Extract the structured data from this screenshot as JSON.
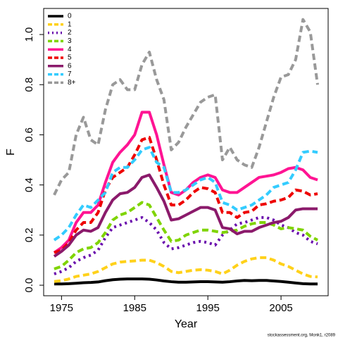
{
  "chart_data": {
    "type": "line",
    "xlabel": "Year",
    "ylabel": "F",
    "caption": "stockassessment.org, Monk1, r2089",
    "x": [
      1974,
      1975,
      1976,
      1977,
      1978,
      1979,
      1980,
      1981,
      1982,
      1983,
      1984,
      1985,
      1986,
      1987,
      1988,
      1989,
      1990,
      1991,
      1992,
      1993,
      1994,
      1995,
      1996,
      1997,
      1998,
      1999,
      2000,
      2001,
      2002,
      2003,
      2004,
      2005,
      2006,
      2007,
      2008,
      2009,
      2010
    ],
    "xlim": [
      1972.56,
      2011.44
    ],
    "xticks": [
      1975,
      1985,
      1995,
      2005
    ],
    "ylim": [
      -0.042,
      1.104
    ],
    "yticks": [
      {
        "value": 0,
        "label": "0.0"
      },
      0.2,
      0.4,
      0.6,
      0.8,
      {
        "value": 1,
        "label": "1.0"
      }
    ],
    "legend": "top-left",
    "series": [
      {
        "name": "0",
        "color": "#000000",
        "linestyle": "solid",
        "values": [
          0.005,
          0.005,
          0.006,
          0.008,
          0.01,
          0.011,
          0.013,
          0.018,
          0.022,
          0.024,
          0.025,
          0.025,
          0.025,
          0.024,
          0.021,
          0.017,
          0.014,
          0.012,
          0.012,
          0.013,
          0.014,
          0.014,
          0.013,
          0.012,
          0.014,
          0.017,
          0.019,
          0.018,
          0.019,
          0.019,
          0.017,
          0.015,
          0.012,
          0.009,
          0.006,
          0.005,
          0.005
        ]
      },
      {
        "name": "1",
        "color": "#FFD11A",
        "linestyle": "dashed",
        "values": [
          0.015,
          0.018,
          0.025,
          0.035,
          0.04,
          0.045,
          0.055,
          0.07,
          0.085,
          0.092,
          0.095,
          0.097,
          0.1,
          0.1,
          0.09,
          0.075,
          0.055,
          0.05,
          0.055,
          0.06,
          0.062,
          0.06,
          0.055,
          0.045,
          0.06,
          0.08,
          0.095,
          0.105,
          0.11,
          0.11,
          0.1,
          0.085,
          0.075,
          0.06,
          0.045,
          0.035,
          0.033
        ]
      },
      {
        "name": "2",
        "color": "#6A0DAD",
        "linestyle": "dotted",
        "values": [
          0.045,
          0.055,
          0.07,
          0.095,
          0.11,
          0.12,
          0.14,
          0.19,
          0.23,
          0.24,
          0.25,
          0.26,
          0.27,
          0.25,
          0.22,
          0.17,
          0.145,
          0.15,
          0.16,
          0.17,
          0.175,
          0.17,
          0.16,
          0.2,
          0.22,
          0.245,
          0.25,
          0.26,
          0.27,
          0.27,
          0.26,
          0.24,
          0.23,
          0.21,
          0.2,
          0.175,
          0.165
        ]
      },
      {
        "name": "3",
        "color": "#7FD400",
        "linestyle": "dashed",
        "values": [
          0.065,
          0.075,
          0.1,
          0.13,
          0.145,
          0.15,
          0.17,
          0.21,
          0.26,
          0.28,
          0.29,
          0.31,
          0.33,
          0.32,
          0.27,
          0.22,
          0.175,
          0.18,
          0.2,
          0.21,
          0.22,
          0.22,
          0.215,
          0.21,
          0.215,
          0.22,
          0.235,
          0.245,
          0.25,
          0.25,
          0.24,
          0.225,
          0.23,
          0.225,
          0.22,
          0.195,
          0.18
        ]
      },
      {
        "name": "4",
        "color": "#FF1493",
        "linestyle": "solid",
        "values": [
          0.13,
          0.15,
          0.18,
          0.25,
          0.29,
          0.29,
          0.32,
          0.41,
          0.49,
          0.53,
          0.56,
          0.6,
          0.69,
          0.69,
          0.6,
          0.48,
          0.37,
          0.36,
          0.38,
          0.41,
          0.43,
          0.44,
          0.43,
          0.38,
          0.37,
          0.37,
          0.39,
          0.41,
          0.43,
          0.435,
          0.44,
          0.45,
          0.465,
          0.47,
          0.46,
          0.43,
          0.42
        ]
      },
      {
        "name": "5",
        "color": "#EE0000",
        "linestyle": "dashed",
        "values": [
          0.13,
          0.14,
          0.17,
          0.22,
          0.25,
          0.25,
          0.29,
          0.38,
          0.43,
          0.45,
          0.47,
          0.52,
          0.58,
          0.59,
          0.5,
          0.4,
          0.32,
          0.32,
          0.34,
          0.37,
          0.39,
          0.385,
          0.37,
          0.29,
          0.29,
          0.27,
          0.29,
          0.295,
          0.32,
          0.325,
          0.335,
          0.34,
          0.35,
          0.38,
          0.375,
          0.36,
          0.365
        ]
      },
      {
        "name": "6",
        "color": "#8B1A6B",
        "linestyle": "solid",
        "values": [
          0.115,
          0.135,
          0.16,
          0.2,
          0.22,
          0.215,
          0.23,
          0.29,
          0.34,
          0.365,
          0.37,
          0.39,
          0.43,
          0.44,
          0.39,
          0.335,
          0.26,
          0.265,
          0.28,
          0.295,
          0.31,
          0.31,
          0.3,
          0.23,
          0.225,
          0.205,
          0.215,
          0.215,
          0.23,
          0.24,
          0.25,
          0.255,
          0.27,
          0.3,
          0.305,
          0.305,
          0.305
        ]
      },
      {
        "name": "7",
        "color": "#33CCFF",
        "linestyle": "dashed",
        "values": [
          0.18,
          0.2,
          0.23,
          0.28,
          0.32,
          0.31,
          0.34,
          0.37,
          0.45,
          0.47,
          0.47,
          0.5,
          0.54,
          0.55,
          0.49,
          0.47,
          0.37,
          0.37,
          0.38,
          0.4,
          0.42,
          0.43,
          0.41,
          0.33,
          0.32,
          0.3,
          0.31,
          0.32,
          0.34,
          0.36,
          0.39,
          0.4,
          0.41,
          0.46,
          0.53,
          0.535,
          0.53
        ]
      },
      {
        "name": "8+",
        "color": "#999999",
        "linestyle": "dashed",
        "values": [
          0.36,
          0.42,
          0.45,
          0.6,
          0.67,
          0.58,
          0.56,
          0.7,
          0.8,
          0.82,
          0.78,
          0.78,
          0.88,
          0.93,
          0.82,
          0.74,
          0.54,
          0.57,
          0.63,
          0.68,
          0.73,
          0.75,
          0.76,
          0.5,
          0.55,
          0.5,
          0.48,
          0.47,
          0.55,
          0.65,
          0.75,
          0.83,
          0.84,
          0.9,
          1.06,
          1.01,
          0.8
        ]
      }
    ]
  }
}
